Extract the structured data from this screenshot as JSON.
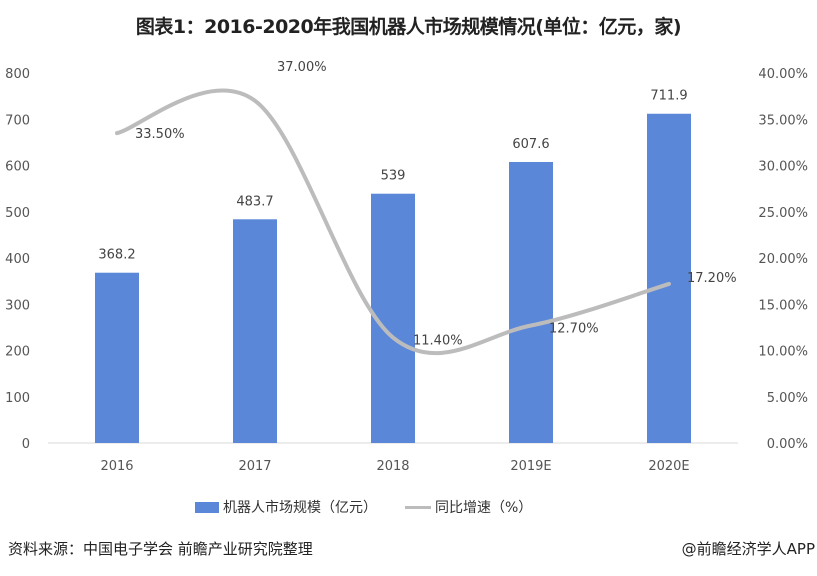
{
  "chart_data": {
    "type": "bar+line",
    "title": "图表1：2016-2020年我国机器人市场规模情况(单位：亿元，家)",
    "categories": [
      "2016",
      "2017",
      "2018",
      "2019E",
      "2020E"
    ],
    "series": [
      {
        "name": "机器人市场规模（亿元）",
        "type": "bar",
        "axis": "left",
        "color": "#5b87d9",
        "values": [
          368.2,
          483.7,
          539,
          607.6,
          711.9
        ],
        "labels": [
          "368.2",
          "483.7",
          "539",
          "607.6",
          "711.9"
        ]
      },
      {
        "name": "同比增速（%）",
        "type": "line",
        "axis": "right",
        "color": "#bcbcbc",
        "values": [
          33.5,
          37.0,
          11.4,
          12.7,
          17.2
        ],
        "labels": [
          "33.50%",
          "37.00%",
          "11.40%",
          "12.70%",
          "17.20%"
        ]
      }
    ],
    "y_left": {
      "range": [
        0,
        800
      ],
      "ticks": [
        "0",
        "100",
        "200",
        "300",
        "400",
        "500",
        "600",
        "700",
        "800"
      ]
    },
    "y_right": {
      "range": [
        0,
        40
      ],
      "ticks": [
        "0.00%",
        "5.00%",
        "10.00%",
        "15.00%",
        "20.00%",
        "25.00%",
        "30.00%",
        "35.00%",
        "40.00%"
      ]
    },
    "grid": false,
    "legend": "bottom"
  },
  "legend": {
    "bar": "机器人市场规模（亿元）",
    "line": "同比增速（%）"
  },
  "footer": {
    "source": "资料来源：中国电子学会 前瞻产业研究院整理",
    "credit": "@前瞻经济学人APP"
  }
}
